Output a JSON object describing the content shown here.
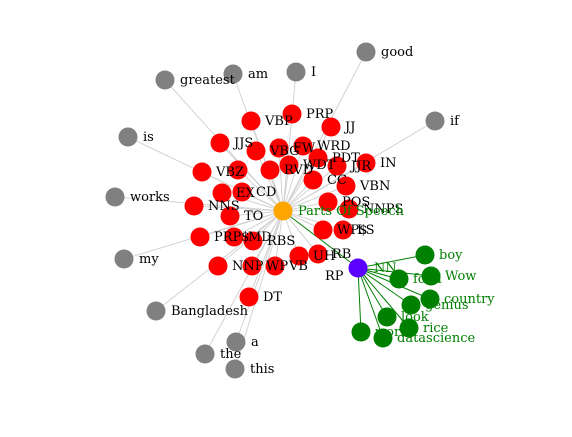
{
  "colors": {
    "pos_tag_node": "#ff0000",
    "center_node": "#ffa500",
    "nn_node": "#5b00ff",
    "noun_node": "#008000",
    "word_node": "#808080",
    "edge_gray": "#d3d3d3",
    "edge_green": "#008000",
    "label_default": "#000000",
    "label_green": "#008000"
  },
  "graph": {
    "center": {
      "label": "Parts Of Speech"
    },
    "gray_words": [
      "good",
      "am",
      "I",
      "greatest",
      "if",
      "is",
      "works",
      "my",
      "Bangladesh",
      "a",
      "the",
      "this"
    ],
    "pos_tags": [
      "VBP",
      "PRP",
      "JJ",
      "JJS",
      "VBG",
      "FW",
      "WRD",
      "PDT",
      "JJR",
      "IN",
      "VBZ",
      "RP",
      "RVD",
      "WDT",
      "CC",
      "VBN",
      "EX",
      "CD",
      "POS",
      "NNPS",
      "NNS",
      "TO",
      "WP$",
      "LS",
      "PRP$",
      "MD",
      "RBS",
      "UH",
      "RB",
      "NNP",
      "WP",
      "VB",
      "DT"
    ],
    "nn": {
      "label": "NN"
    },
    "green_nouns": [
      "boy",
      "Wow",
      "country",
      "genius",
      "rice",
      "datascience",
      "food",
      "look",
      "world"
    ]
  }
}
